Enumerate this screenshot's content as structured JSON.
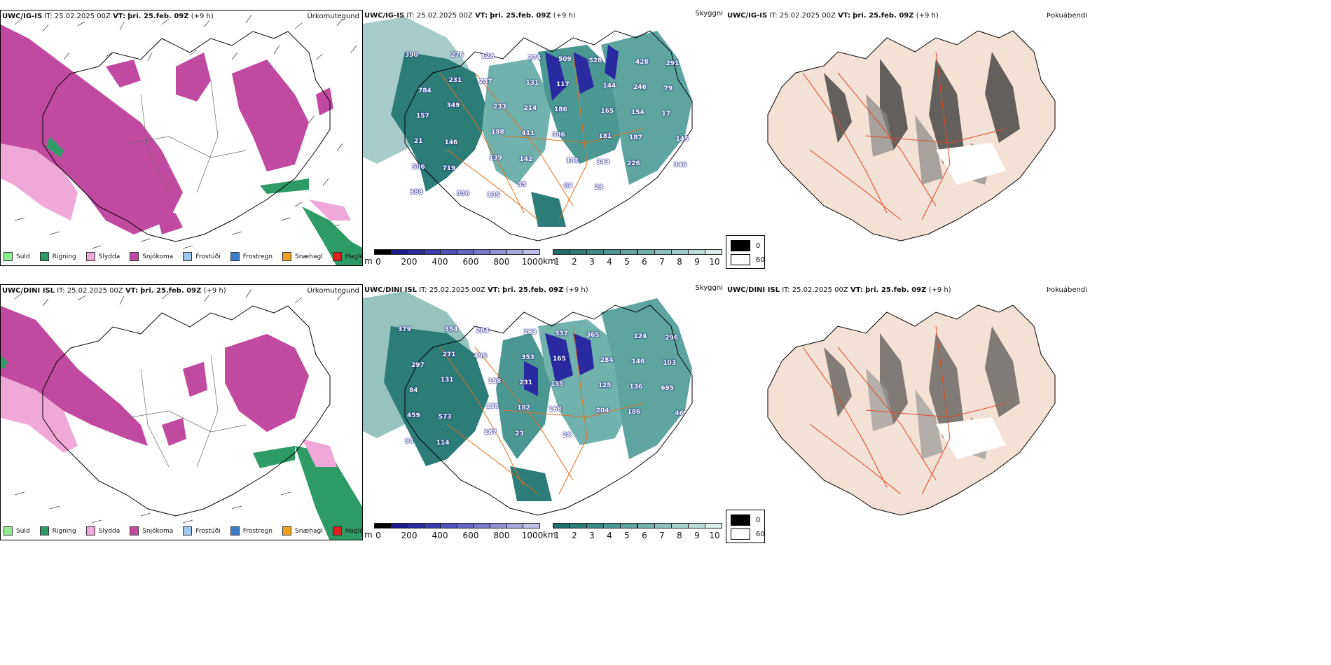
{
  "rows": [
    {
      "model": "UWC/IG-IS",
      "it_label": "IT:",
      "it_value": "25.02.2025 00Z",
      "vt_label": "VT:",
      "vt_value": "þri. 25.feb. 09Z",
      "offset": "(+9 h)"
    },
    {
      "model": "UWC/DINI ISL",
      "it_label": "IT:",
      "it_value": "25.02.2025 00Z",
      "vt_label": "VT:",
      "vt_value": "þri. 25.feb. 09Z",
      "offset": "(+9 h)"
    }
  ],
  "panels": {
    "precip_title": "Úrkomutegund",
    "cloud_title": "Skyggni",
    "fog_title": "Þokuábendi"
  },
  "precip_legend": [
    {
      "label": "Súld",
      "color": "#90ee90"
    },
    {
      "label": "Rigning",
      "color": "#2e9a66"
    },
    {
      "label": "Slydda",
      "color": "#f0a8d8"
    },
    {
      "label": "Snjókoma",
      "color": "#c04aa0"
    },
    {
      "label": "Frostúði",
      "color": "#9cc8f0"
    },
    {
      "label": "Frostregn",
      "color": "#3a7ec8"
    },
    {
      "label": "Snæhagl",
      "color": "#f0a020"
    },
    {
      "label": "Haglél",
      "color": "#e02020"
    }
  ],
  "cloud_base_bar": {
    "unit": "m",
    "ticks": [
      "0",
      "200",
      "400",
      "600",
      "800",
      "1000"
    ],
    "colors": [
      "#000000",
      "#1a1a8a",
      "#2a2aa0",
      "#3c3cb0",
      "#5050bc",
      "#6464c4",
      "#7878cc",
      "#9090d4",
      "#a8a8dc",
      "#c0c0e4"
    ]
  },
  "visibility_bar": {
    "unit": "km",
    "ticks": [
      "1",
      "2",
      "3",
      "4",
      "5",
      "6",
      "7",
      "8",
      "9",
      "10"
    ],
    "colors": [
      "#1f6f6a",
      "#2c7d78",
      "#3a8a85",
      "#4b9893",
      "#5ea5a0",
      "#72b2ad",
      "#88c0bb",
      "#a0cec9",
      "#bcdcd8",
      "#dcecea"
    ]
  },
  "fog_legend": [
    {
      "label": "0",
      "color": "#000000"
    },
    {
      "label": "60",
      "color": "#ffffff"
    }
  ],
  "cloud_labels_top": [
    "390",
    "276",
    "126",
    "274",
    "509",
    "528",
    "428",
    "291",
    "784",
    "231",
    "237",
    "131",
    "117",
    "144",
    "246",
    "79",
    "157",
    "349",
    "233",
    "214",
    "186",
    "165",
    "154",
    "17",
    "21",
    "146",
    "198",
    "411",
    "386",
    "181",
    "187",
    "145",
    "506",
    "719",
    "139",
    "142",
    "181",
    "343",
    "226",
    "346",
    "388",
    "356",
    "135",
    "35",
    "84",
    "23"
  ],
  "cloud_labels_bottom": [
    "379",
    "354",
    "284",
    "263",
    "337",
    "365",
    "124",
    "296",
    "297",
    "271",
    "496",
    "353",
    "165",
    "284",
    "146",
    "103",
    "84",
    "131",
    "158",
    "231",
    "155",
    "125",
    "136",
    "695",
    "459",
    "573",
    "138",
    "182",
    "168",
    "204",
    "186",
    "46",
    "94",
    "114",
    "187",
    "23",
    "28"
  ]
}
